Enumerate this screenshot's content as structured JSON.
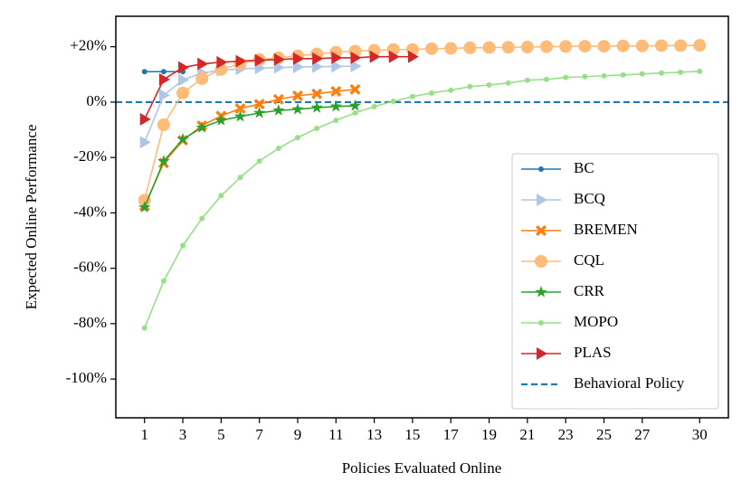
{
  "chart_data": {
    "type": "line",
    "xlabel": "Policies Evaluated Online",
    "ylabel": "Expected Online Performance",
    "xlim": [
      -0.5,
      31.5
    ],
    "ylim": [
      -114,
      31
    ],
    "xticks": [
      1,
      3,
      5,
      7,
      9,
      11,
      13,
      15,
      17,
      19,
      21,
      23,
      25,
      27,
      30
    ],
    "yticks": [
      {
        "value": -100,
        "label": "-100%"
      },
      {
        "value": -80,
        "label": "-80%"
      },
      {
        "value": -60,
        "label": "-60%"
      },
      {
        "value": -40,
        "label": "-40%"
      },
      {
        "value": -20,
        "label": "-20%"
      },
      {
        "value": 0,
        "label": "0%"
      },
      {
        "value": 20,
        "label": "+20%"
      }
    ],
    "legend": "lower right",
    "series": [
      {
        "name": "BC",
        "color": "#1f77b4",
        "marker": "dot",
        "x": [
          1,
          2,
          3
        ],
        "values": [
          11,
          11,
          11
        ]
      },
      {
        "name": "BCQ",
        "color": "#aec7e8",
        "marker": "triangle-right",
        "x": [
          1,
          2,
          3,
          4,
          5,
          6,
          7,
          8,
          9,
          10,
          11,
          12
        ],
        "values": [
          -14.5,
          2.5,
          8,
          10.5,
          11.5,
          12,
          12.3,
          12.5,
          12.7,
          12.8,
          12.9,
          13
        ]
      },
      {
        "name": "BREMEN",
        "color": "#ff7f0e",
        "marker": "x",
        "x": [
          1,
          2,
          3,
          4,
          5,
          6,
          7,
          8,
          9,
          10,
          11,
          12
        ],
        "values": [
          -37.5,
          -22,
          -13.8,
          -8.5,
          -5,
          -2.3,
          -0.7,
          1,
          2.3,
          3,
          3.9,
          4.6
        ]
      },
      {
        "name": "CQL",
        "color": "#ffbb78",
        "marker": "circle",
        "x": [
          1,
          2,
          3,
          4,
          5,
          6,
          7,
          8,
          9,
          10,
          11,
          12,
          13,
          14,
          15,
          16,
          17,
          18,
          19,
          20,
          21,
          22,
          23,
          24,
          25,
          26,
          27,
          28,
          29,
          30
        ],
        "values": [
          -35.4,
          -8.2,
          3.3,
          8.5,
          11.8,
          13.8,
          15.4,
          16,
          16.7,
          17.4,
          18,
          18.4,
          18.7,
          19,
          19,
          19.3,
          19.4,
          19.6,
          19.7,
          19.8,
          19.9,
          20,
          20.1,
          20.2,
          20.2,
          20.3,
          20.3,
          20.4,
          20.4,
          20.5
        ]
      },
      {
        "name": "CRR",
        "color": "#2ca02c",
        "marker": "star",
        "x": [
          1,
          2,
          3,
          4,
          5,
          6,
          7,
          8,
          9,
          10,
          11,
          12
        ],
        "values": [
          -38,
          -21.3,
          -13.4,
          -9.2,
          -6.6,
          -5.2,
          -3.9,
          -3,
          -2.6,
          -2,
          -1.6,
          -1.3
        ]
      },
      {
        "name": "MOPO",
        "color": "#98df8a",
        "marker": "dot",
        "x": [
          1,
          2,
          3,
          4,
          5,
          6,
          7,
          8,
          9,
          10,
          11,
          12,
          13,
          14,
          15,
          16,
          17,
          18,
          19,
          20,
          21,
          22,
          23,
          24,
          25,
          26,
          27,
          28,
          29,
          30
        ],
        "values": [
          -81.6,
          -64.6,
          -51.8,
          -42,
          -33.8,
          -27.2,
          -21.3,
          -16.7,
          -12.8,
          -9.5,
          -6.6,
          -3.9,
          -1.6,
          0.3,
          2,
          3.3,
          4.3,
          5.6,
          6.2,
          6.9,
          7.9,
          8.2,
          8.9,
          9.2,
          9.5,
          9.8,
          10.2,
          10.5,
          10.8,
          11.1
        ]
      },
      {
        "name": "PLAS",
        "color": "#d62728",
        "marker": "triangle-right",
        "x": [
          1,
          2,
          3,
          4,
          5,
          6,
          7,
          8,
          9,
          10,
          11,
          12,
          13,
          14,
          15
        ],
        "values": [
          -6.2,
          8.2,
          12.5,
          13.8,
          14.4,
          14.8,
          15.1,
          15.4,
          15.7,
          15.7,
          16,
          16,
          16.4,
          16.4,
          16.4
        ]
      }
    ],
    "reference_line": {
      "name": "Behavioral Policy",
      "value": 0,
      "color": "#1f77b4"
    }
  }
}
